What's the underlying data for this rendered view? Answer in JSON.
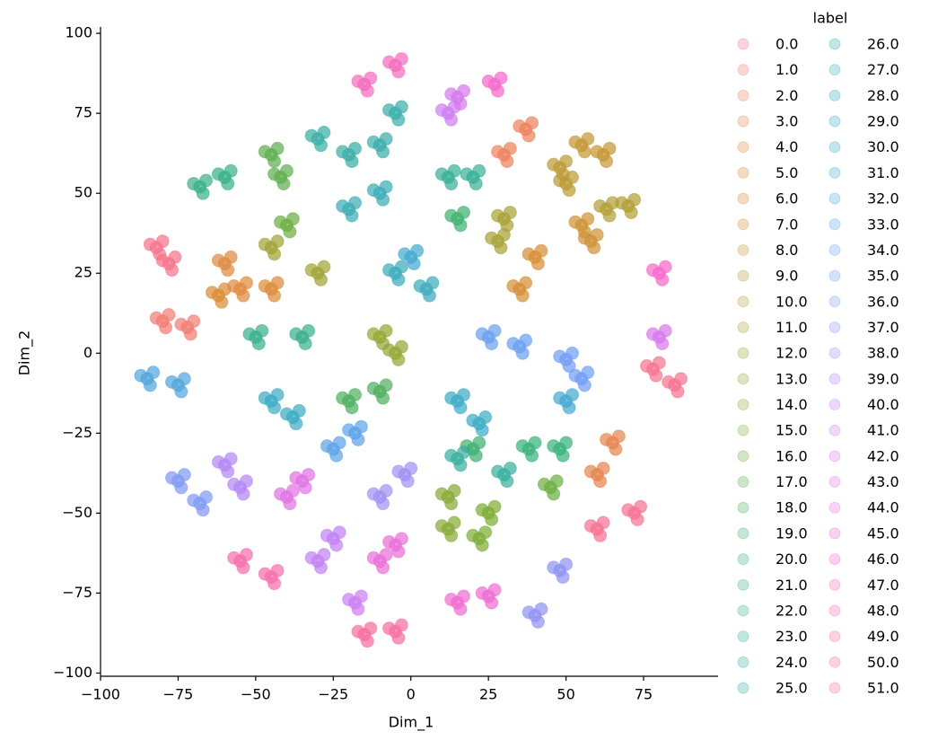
{
  "chart_data": {
    "type": "scatter",
    "xlabel": "Dim_1",
    "ylabel": "Dim_2",
    "legend_title": "label",
    "legend": "outside right",
    "grid": false,
    "xlim": [
      -100,
      99
    ],
    "ylim": [
      -101,
      102
    ],
    "xticks": [
      {
        "value": -100,
        "label": "−100"
      },
      {
        "value": -75,
        "label": "−75"
      },
      {
        "value": -50,
        "label": "−50"
      },
      {
        "value": -25,
        "label": "−25"
      },
      0,
      25,
      50,
      75
    ],
    "yticks": [
      {
        "value": -100,
        "label": "−100"
      },
      {
        "value": -75,
        "label": "−75"
      },
      {
        "value": -50,
        "label": "−50"
      },
      {
        "value": -25,
        "label": "−25"
      },
      0,
      25,
      50,
      75,
      100
    ],
    "series": [
      {
        "name": "0.0",
        "color": "#f77189",
        "x": [
          -82,
          -80,
          -84,
          -81,
          -78,
          -76,
          -80,
          -77
        ],
        "values": [
          33,
          35,
          34,
          31,
          28,
          30,
          29,
          26
        ]
      },
      {
        "name": "1.0",
        "color": "#f27a6f",
        "x": [
          -80,
          -78,
          -82,
          -79,
          -72,
          -70,
          -74,
          -71
        ],
        "values": [
          10,
          12,
          11,
          8,
          8,
          10,
          9,
          6
        ]
      },
      {
        "name": "2.0",
        "color": "#ec7f58",
        "x": [
          30,
          32,
          28,
          31,
          37,
          39,
          35,
          38
        ],
        "values": [
          62,
          64,
          63,
          60,
          70,
          72,
          71,
          68
        ]
      },
      {
        "name": "3.0",
        "color": "#e6834a",
        "x": [
          60,
          62,
          58,
          61,
          65,
          67,
          63,
          66
        ],
        "values": [
          -38,
          -36,
          -37,
          -40,
          -28,
          -26,
          -27,
          -30
        ]
      },
      {
        "name": "4.0",
        "color": "#e0873c",
        "x": [
          -60,
          -58,
          -62,
          -59,
          -55,
          -53,
          -57,
          -54
        ],
        "values": [
          28,
          30,
          29,
          26,
          20,
          22,
          21,
          18
        ]
      },
      {
        "name": "5.0",
        "color": "#dc8932",
        "x": [
          -62,
          -60,
          -64,
          -61,
          -45,
          -43,
          -47,
          -44
        ],
        "values": [
          18,
          20,
          19,
          16,
          20,
          22,
          21,
          18
        ]
      },
      {
        "name": "6.0",
        "color": "#d58c31",
        "x": [
          40,
          42,
          38,
          41,
          35,
          37,
          33,
          36
        ],
        "values": [
          30,
          32,
          31,
          28,
          20,
          22,
          21,
          18
        ]
      },
      {
        "name": "7.0",
        "color": "#cd9031",
        "x": [
          55,
          57,
          53,
          56,
          58,
          60,
          56,
          59
        ],
        "values": [
          40,
          42,
          41,
          38,
          35,
          37,
          36,
          33
        ]
      },
      {
        "name": "8.0",
        "color": "#c49431",
        "x": [
          55,
          57,
          53,
          56,
          62,
          64,
          60,
          63
        ],
        "values": [
          65,
          67,
          66,
          63,
          62,
          64,
          63,
          60
        ]
      },
      {
        "name": "9.0",
        "color": "#b99931",
        "x": [
          48,
          50,
          46,
          49,
          50,
          52,
          48,
          51
        ],
        "values": [
          58,
          60,
          59,
          56,
          53,
          55,
          54,
          51
        ]
      },
      {
        "name": "10.0",
        "color": "#b09c31",
        "x": [
          70,
          72,
          68,
          71,
          63,
          65,
          61,
          64
        ],
        "values": [
          46,
          48,
          47,
          44,
          45,
          47,
          46,
          43
        ]
      },
      {
        "name": "11.0",
        "color": "#a69f31",
        "x": [
          30,
          32,
          28,
          31,
          28,
          30,
          26,
          29
        ],
        "values": [
          42,
          44,
          43,
          40,
          35,
          37,
          36,
          33
        ]
      },
      {
        "name": "12.0",
        "color": "#9ca231",
        "x": [
          -45,
          -43,
          -47,
          -44,
          -30,
          -28,
          -32,
          -29
        ],
        "values": [
          33,
          35,
          34,
          31,
          25,
          27,
          26,
          23
        ]
      },
      {
        "name": "13.0",
        "color": "#91a531",
        "x": [
          -10,
          -8,
          -12,
          -9,
          -5,
          -3,
          -7,
          -4
        ],
        "values": [
          5,
          7,
          6,
          3,
          0,
          2,
          1,
          -2
        ]
      },
      {
        "name": "14.0",
        "color": "#85a831",
        "x": [
          12,
          14,
          10,
          13,
          12,
          14,
          10,
          13
        ],
        "values": [
          -45,
          -43,
          -44,
          -47,
          -55,
          -53,
          -54,
          -57
        ]
      },
      {
        "name": "15.0",
        "color": "#7aab31",
        "x": [
          25,
          27,
          23,
          26,
          22,
          24,
          20,
          23
        ],
        "values": [
          -50,
          -48,
          -49,
          -52,
          -58,
          -56,
          -57,
          -60
        ]
      },
      {
        "name": "16.0",
        "color": "#6bac3e",
        "x": [
          -40,
          -38,
          -42,
          -39,
          45,
          47,
          43,
          46
        ],
        "values": [
          40,
          42,
          41,
          38,
          -42,
          -40,
          -41,
          -44
        ]
      },
      {
        "name": "17.0",
        "color": "#5bad4c",
        "x": [
          -45,
          -43,
          -47,
          -44,
          -42,
          -40,
          -44,
          -41
        ],
        "values": [
          62,
          64,
          63,
          60,
          55,
          57,
          56,
          53
        ]
      },
      {
        "name": "18.0",
        "color": "#4aae5c",
        "x": [
          -20,
          -18,
          -22,
          -19,
          -10,
          -8,
          -12,
          -9
        ],
        "values": [
          -15,
          -13,
          -14,
          -17,
          -12,
          -10,
          -11,
          -14
        ]
      },
      {
        "name": "19.0",
        "color": "#3caf6c",
        "x": [
          15,
          17,
          13,
          16,
          20,
          22,
          18,
          21
        ],
        "values": [
          42,
          44,
          43,
          40,
          -30,
          -28,
          -29,
          -32
        ]
      },
      {
        "name": "20.0",
        "color": "#33b07a",
        "x": [
          38,
          40,
          36,
          39,
          48,
          50,
          46,
          49
        ],
        "values": [
          -30,
          -28,
          -29,
          -32,
          -30,
          -28,
          -29,
          -32
        ]
      },
      {
        "name": "21.0",
        "color": "#34af83",
        "x": [
          -68,
          -66,
          -70,
          -67,
          -60,
          -58,
          -62,
          -59
        ],
        "values": [
          52,
          54,
          53,
          50,
          55,
          57,
          56,
          53
        ]
      },
      {
        "name": "22.0",
        "color": "#34ae8c",
        "x": [
          -50,
          -48,
          -52,
          -49,
          -35,
          -33,
          -37,
          -34
        ],
        "values": [
          5,
          7,
          6,
          3,
          5,
          7,
          6,
          3
        ]
      },
      {
        "name": "23.0",
        "color": "#35ae95",
        "x": [
          12,
          14,
          10,
          13,
          20,
          22,
          18,
          21
        ],
        "values": [
          55,
          57,
          56,
          53,
          55,
          57,
          56,
          53
        ]
      },
      {
        "name": "24.0",
        "color": "#35ad9c",
        "x": [
          15,
          17,
          13,
          16,
          30,
          32,
          28,
          31
        ],
        "values": [
          -33,
          -31,
          -32,
          -35,
          -38,
          -36,
          -37,
          -40
        ]
      },
      {
        "name": "25.0",
        "color": "#36ada4",
        "x": [
          -30,
          -28,
          -32,
          -29,
          -20,
          -18,
          -22,
          -19
        ],
        "values": [
          67,
          69,
          68,
          65,
          62,
          64,
          63,
          60
        ]
      },
      {
        "name": "26.0",
        "color": "#36acaa",
        "x": [
          -10,
          -8,
          -12,
          -9,
          -5,
          -3,
          -7,
          -4
        ],
        "values": [
          65,
          67,
          66,
          63,
          75,
          77,
          76,
          73
        ]
      },
      {
        "name": "27.0",
        "color": "#37abb3",
        "x": [
          -20,
          -18,
          -22,
          -19,
          -10,
          -8,
          -12,
          -9
        ],
        "values": [
          45,
          47,
          46,
          43,
          50,
          52,
          51,
          48
        ]
      },
      {
        "name": "28.0",
        "color": "#37aabb",
        "x": [
          -5,
          -3,
          -7,
          -4,
          5,
          7,
          3,
          6
        ],
        "values": [
          25,
          27,
          26,
          23,
          20,
          22,
          21,
          18
        ]
      },
      {
        "name": "29.0",
        "color": "#38a9c2",
        "x": [
          -45,
          -43,
          -47,
          -44,
          -38,
          -36,
          -40,
          -37
        ],
        "values": [
          -15,
          -13,
          -14,
          -17,
          -20,
          -18,
          -19,
          -22
        ]
      },
      {
        "name": "30.0",
        "color": "#38a9c5",
        "x": [
          15,
          17,
          13,
          16,
          22,
          24,
          20,
          23
        ],
        "values": [
          -15,
          -13,
          -14,
          -17,
          -22,
          -20,
          -21,
          -24
        ]
      },
      {
        "name": "31.0",
        "color": "#42a6d0",
        "x": [
          50,
          52,
          48,
          51,
          0,
          2,
          -2,
          1
        ],
        "values": [
          -15,
          -13,
          -14,
          -17,
          30,
          32,
          31,
          28
        ]
      },
      {
        "name": "32.0",
        "color": "#4ea4dc",
        "x": [
          -85,
          -83,
          -87,
          -84,
          -75,
          -73,
          -77,
          -74
        ],
        "values": [
          -8,
          -6,
          -7,
          -10,
          -10,
          -8,
          -9,
          -12
        ]
      },
      {
        "name": "33.0",
        "color": "#5aa1e8",
        "x": [
          -25,
          -23,
          -27,
          -24,
          -18,
          -16,
          -20,
          -17
        ],
        "values": [
          -30,
          -28,
          -29,
          -32,
          -25,
          -23,
          -24,
          -27
        ]
      },
      {
        "name": "34.0",
        "color": "#669ef0",
        "x": [
          25,
          27,
          23,
          26,
          35,
          37,
          33,
          36
        ],
        "values": [
          5,
          7,
          6,
          3,
          2,
          4,
          3,
          0
        ]
      },
      {
        "name": "35.0",
        "color": "#6e9bf4",
        "x": [
          55,
          57,
          53,
          56,
          50,
          52,
          48,
          51
        ],
        "values": [
          -8,
          -6,
          -7,
          -10,
          -2,
          0,
          -1,
          -4
        ]
      },
      {
        "name": "36.0",
        "color": "#7d97f4",
        "x": [
          -75,
          -73,
          -77,
          -74,
          -68,
          -66,
          -70,
          -67
        ],
        "values": [
          -40,
          -38,
          -39,
          -42,
          -47,
          -45,
          -46,
          -49
        ]
      },
      {
        "name": "37.0",
        "color": "#8e92f4",
        "x": [
          48,
          50,
          46,
          49,
          40,
          42,
          38,
          41
        ],
        "values": [
          -68,
          -66,
          -67,
          -70,
          -82,
          -80,
          -81,
          -84
        ]
      },
      {
        "name": "38.0",
        "color": "#9f8ef4",
        "x": [
          -10,
          -8,
          -12,
          -9,
          -2,
          0,
          -4,
          -1
        ],
        "values": [
          -45,
          -43,
          -44,
          -47,
          -38,
          -36,
          -37,
          -40
        ]
      },
      {
        "name": "39.0",
        "color": "#b085f4",
        "x": [
          -60,
          -58,
          -62,
          -59,
          -55,
          -53,
          -57,
          -54
        ],
        "values": [
          -35,
          -33,
          -34,
          -37,
          -42,
          -40,
          -41,
          -44
        ]
      },
      {
        "name": "40.0",
        "color": "#bf7ff4",
        "x": [
          -30,
          -28,
          -32,
          -29,
          -25,
          -23,
          -27,
          -24
        ],
        "values": [
          -65,
          -63,
          -64,
          -67,
          -58,
          -56,
          -57,
          -60
        ]
      },
      {
        "name": "41.0",
        "color": "#cc7af4",
        "x": [
          -18,
          -16,
          -20,
          -17,
          12,
          14,
          10,
          13
        ],
        "values": [
          -78,
          -76,
          -77,
          -80,
          75,
          77,
          76,
          73
        ]
      },
      {
        "name": "42.0",
        "color": "#d676ec",
        "x": [
          80,
          82,
          78,
          81,
          15,
          17,
          13,
          16
        ],
        "values": [
          5,
          7,
          6,
          3,
          80,
          82,
          81,
          78
        ]
      },
      {
        "name": "43.0",
        "color": "#e06fe3",
        "x": [
          -40,
          -38,
          -42,
          -39,
          -35,
          -33,
          -37,
          -34
        ],
        "values": [
          -45,
          -43,
          -44,
          -47,
          -40,
          -38,
          -39,
          -42
        ]
      },
      {
        "name": "44.0",
        "color": "#ea6bd9",
        "x": [
          -5,
          -3,
          -7,
          -4,
          -10,
          -8,
          -12,
          -9
        ],
        "values": [
          -60,
          -58,
          -59,
          -62,
          -65,
          -63,
          -64,
          -67
        ]
      },
      {
        "name": "45.0",
        "color": "#f068d2",
        "x": [
          15,
          17,
          13,
          16,
          25,
          27,
          23,
          26
        ],
        "values": [
          -78,
          -76,
          -77,
          -80,
          -76,
          -74,
          -75,
          -78
        ]
      },
      {
        "name": "46.0",
        "color": "#f565cc",
        "x": [
          80,
          82,
          78,
          81,
          27,
          29,
          25,
          28
        ],
        "values": [
          25,
          27,
          26,
          23,
          84,
          86,
          85,
          82
        ]
      },
      {
        "name": "47.0",
        "color": "#f567bb",
        "x": [
          -15,
          -13,
          -17,
          -14,
          -5,
          -3,
          -7,
          -4
        ],
        "values": [
          84,
          86,
          85,
          82,
          90,
          92,
          91,
          88
        ]
      },
      {
        "name": "48.0",
        "color": "#f669ab",
        "x": [
          -55,
          -53,
          -57,
          -54,
          -45,
          -43,
          -47,
          -44
        ],
        "values": [
          -65,
          -63,
          -64,
          -67,
          -70,
          -68,
          -69,
          -72
        ]
      },
      {
        "name": "49.0",
        "color": "#f66b9d",
        "x": [
          -15,
          -13,
          -17,
          -14,
          -5,
          -3,
          -7,
          -4
        ],
        "values": [
          -88,
          -86,
          -87,
          -90,
          -87,
          -85,
          -86,
          -89
        ]
      },
      {
        "name": "50.0",
        "color": "#f76e92",
        "x": [
          60,
          62,
          58,
          61,
          72,
          74,
          70,
          73
        ],
        "values": [
          -55,
          -53,
          -54,
          -57,
          -50,
          -48,
          -49,
          -52
        ]
      },
      {
        "name": "51.0",
        "color": "#f7708c",
        "x": [
          85,
          87,
          83,
          86,
          78,
          80,
          76,
          79
        ],
        "values": [
          -10,
          -8,
          -9,
          -12,
          -5,
          -3,
          -4,
          -7
        ]
      }
    ]
  }
}
